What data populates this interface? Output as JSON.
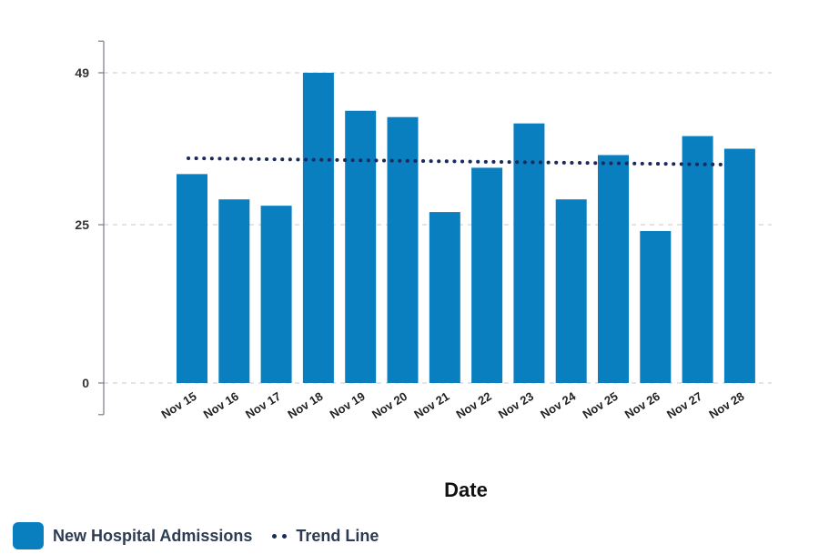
{
  "chart_data": {
    "type": "bar",
    "categories": [
      "Nov 15",
      "Nov 16",
      "Nov 17",
      "Nov 18",
      "Nov 19",
      "Nov 20",
      "Nov 21",
      "Nov 22",
      "Nov 23",
      "Nov 24",
      "Nov 25",
      "Nov 26",
      "Nov 27",
      "Nov 28"
    ],
    "series": [
      {
        "name": "New Hospital Admissions",
        "color": "#0a7fc0",
        "values": [
          33,
          29,
          28,
          49,
          43,
          42,
          27,
          34,
          41,
          29,
          36,
          24,
          39,
          37
        ]
      }
    ],
    "trend_line": {
      "name": "Trend Line",
      "color": "#1a2a5a",
      "start": 35.5,
      "end": 34.5
    },
    "yticks": [
      0,
      25,
      49
    ],
    "ylim": [
      -5,
      54
    ],
    "xlabel": "Date",
    "ylabel": "",
    "grid": "horizontal dashed",
    "legend_position": "bottom-left"
  }
}
